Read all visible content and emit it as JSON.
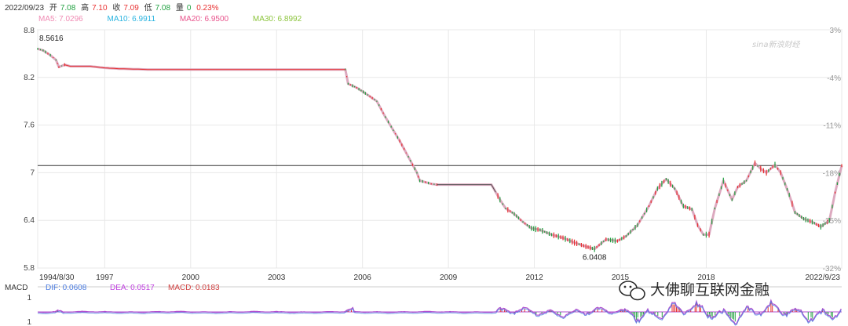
{
  "header": {
    "date": "2022/09/23",
    "open_label": "开",
    "open": "7.08",
    "high_label": "高",
    "high": "7.10",
    "close_label": "收",
    "close": "7.09",
    "low_label": "低",
    "low": "7.08",
    "volume_label": "量",
    "volume": "0",
    "change": "0.23%"
  },
  "ma": [
    {
      "label": "MA5: 7.0296",
      "color": "#f08cb4"
    },
    {
      "label": "MA10: 6.9911",
      "color": "#2ab4e0"
    },
    {
      "label": "MA20: 6.9500",
      "color": "#e8548c"
    },
    {
      "label": "MA30: 6.8992",
      "color": "#8cc43c"
    }
  ],
  "macd_header": {
    "title": "MACD",
    "dif": "DIF: 0.0608",
    "dif_color": "#4a7be0",
    "dea": "DEA: 0.0517",
    "dea_color": "#c040e0",
    "macd": "MACD: 0.0183",
    "macd_color": "#d04040"
  },
  "colors": {
    "up": "#e83030",
    "down": "#20a040",
    "ma": "#d8a0b8",
    "ref_line": "#333333",
    "grid": "#e8e8e8"
  },
  "watermark": {
    "brand": "sina新浪财经",
    "wechat": "大佛聊互联网金融",
    "icon": "wechat-icon"
  },
  "chart_data": {
    "type": "line",
    "title": "",
    "xlabel": "",
    "ylabel": "",
    "ylim": [
      5.8,
      8.8
    ],
    "y_ticks": [
      "8.8",
      "8.2",
      "7.6",
      "7",
      "6.4",
      "5.8"
    ],
    "y_tick_values": [
      8.8,
      8.2,
      7.6,
      7.0,
      6.4,
      5.8
    ],
    "pct_ticks": [
      "3%",
      "-4%",
      "-11%",
      "-18%",
      "-25%",
      "-32%"
    ],
    "x_ticks": [
      "1994/8/30",
      "1997",
      "2000",
      "2003",
      "2006",
      "2009",
      "2012",
      "2015",
      "2018",
      "2022/9/23"
    ],
    "x_tick_values": [
      1994.66,
      1997.0,
      2000.0,
      2003.0,
      2006.0,
      2009.0,
      2012.0,
      2015.0,
      2018.0,
      2022.73
    ],
    "xlim": [
      1994.66,
      2022.73
    ],
    "reference_line": 7.09,
    "annotations": [
      {
        "text": "8.5616",
        "x": 1994.66,
        "y": 8.5616
      },
      {
        "text": "6.0408",
        "x": 2014.1,
        "y": 6.0408
      }
    ],
    "series": [
      {
        "x": [
          1994.66,
          1994.85,
          1995.1,
          1995.3,
          1995.4,
          1995.6,
          1995.8,
          1996.5,
          1997.0,
          1997.5,
          1998.5,
          2000.0,
          2002.0,
          2004.0,
          2005.4,
          2005.5,
          2005.8,
          2006.1,
          2006.5,
          2006.8,
          2007.0,
          2007.3,
          2007.6,
          2007.9,
          2008.0,
          2008.2,
          2008.4,
          2008.6,
          2009.0,
          2010.0,
          2010.5,
          2010.8,
          2011.0,
          2011.3,
          2011.6,
          2011.9,
          2012.2,
          2012.6,
          2013.0,
          2013.4,
          2013.8,
          2014.1,
          2014.5,
          2014.9,
          2015.2,
          2015.6,
          2016.0,
          2016.3,
          2016.6,
          2016.9,
          2017.2,
          2017.5,
          2017.7,
          2017.9,
          2018.1,
          2018.3,
          2018.6,
          2018.9,
          2019.1,
          2019.4,
          2019.7,
          2019.9,
          2020.1,
          2020.4,
          2020.6,
          2020.9,
          2021.1,
          2021.4,
          2021.7,
          2022.0,
          2022.3,
          2022.5,
          2022.73
        ],
        "y": [
          8.56,
          8.54,
          8.48,
          8.42,
          8.33,
          8.36,
          8.34,
          8.34,
          8.32,
          8.31,
          8.3,
          8.3,
          8.3,
          8.3,
          8.3,
          8.12,
          8.07,
          8.0,
          7.9,
          7.7,
          7.58,
          7.4,
          7.2,
          7.0,
          6.9,
          6.88,
          6.86,
          6.85,
          6.85,
          6.85,
          6.85,
          6.66,
          6.55,
          6.48,
          6.38,
          6.3,
          6.28,
          6.22,
          6.18,
          6.12,
          6.07,
          6.04,
          6.16,
          6.14,
          6.2,
          6.34,
          6.58,
          6.8,
          6.92,
          6.8,
          6.58,
          6.54,
          6.34,
          6.22,
          6.22,
          6.55,
          6.9,
          6.66,
          6.82,
          6.9,
          7.12,
          7.05,
          7.0,
          7.1,
          7.0,
          6.72,
          6.5,
          6.42,
          6.38,
          6.32,
          6.4,
          6.75,
          7.09
        ]
      }
    ],
    "macd": {
      "y_ticks": [
        "1",
        "1"
      ]
    }
  }
}
